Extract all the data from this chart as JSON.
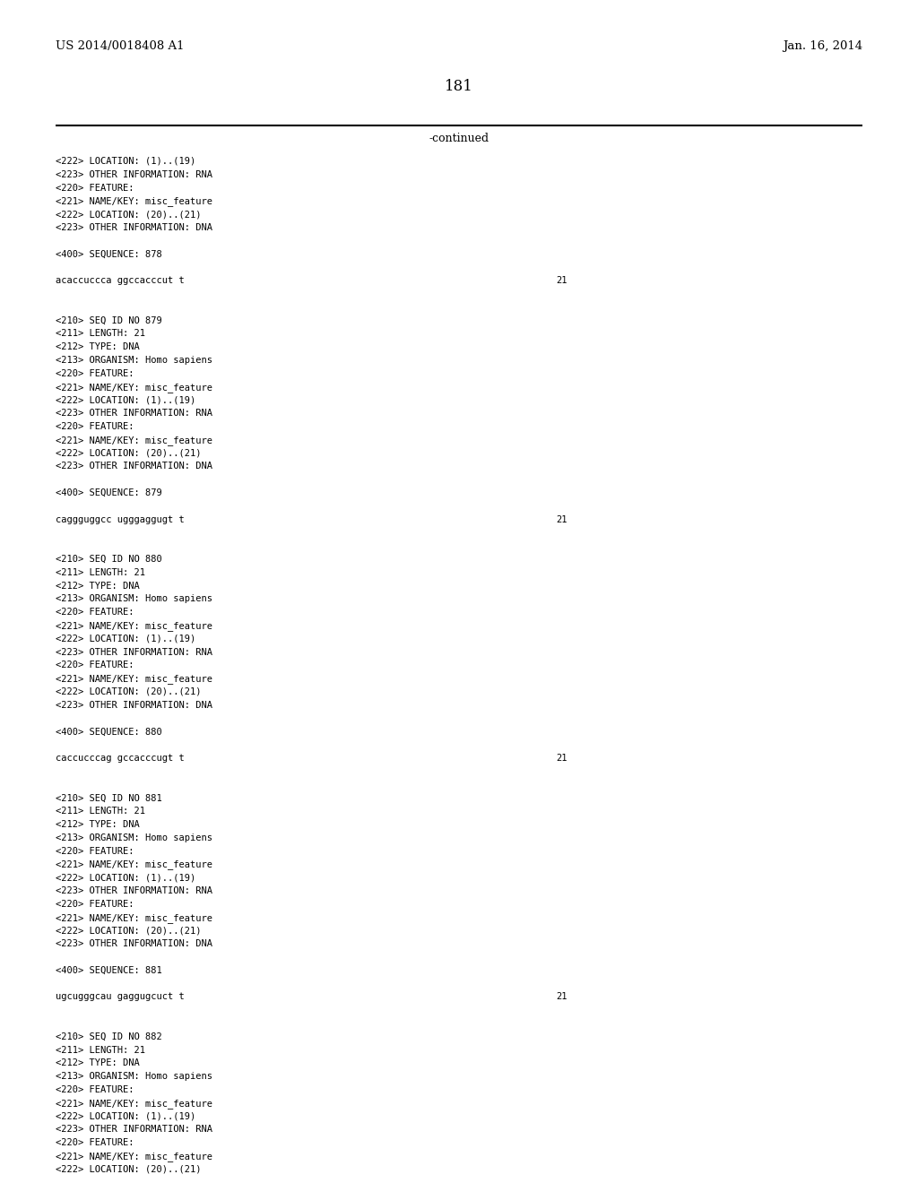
{
  "header_left": "US 2014/0018408 A1",
  "header_right": "Jan. 16, 2014",
  "page_number": "181",
  "continued_label": "-continued",
  "background_color": "#ffffff",
  "text_color": "#000000",
  "lines": [
    {
      "text": "<222> LOCATION: (1)..(19)",
      "seq_num": null
    },
    {
      "text": "<223> OTHER INFORMATION: RNA",
      "seq_num": null
    },
    {
      "text": "<220> FEATURE:",
      "seq_num": null
    },
    {
      "text": "<221> NAME/KEY: misc_feature",
      "seq_num": null
    },
    {
      "text": "<222> LOCATION: (20)..(21)",
      "seq_num": null
    },
    {
      "text": "<223> OTHER INFORMATION: DNA",
      "seq_num": null
    },
    {
      "text": "",
      "seq_num": null
    },
    {
      "text": "<400> SEQUENCE: 878",
      "seq_num": null
    },
    {
      "text": "",
      "seq_num": null
    },
    {
      "text": "acaccuccca ggccacccut t",
      "seq_num": "21"
    },
    {
      "text": "",
      "seq_num": null
    },
    {
      "text": "",
      "seq_num": null
    },
    {
      "text": "<210> SEQ ID NO 879",
      "seq_num": null
    },
    {
      "text": "<211> LENGTH: 21",
      "seq_num": null
    },
    {
      "text": "<212> TYPE: DNA",
      "seq_num": null
    },
    {
      "text": "<213> ORGANISM: Homo sapiens",
      "seq_num": null
    },
    {
      "text": "<220> FEATURE:",
      "seq_num": null
    },
    {
      "text": "<221> NAME/KEY: misc_feature",
      "seq_num": null
    },
    {
      "text": "<222> LOCATION: (1)..(19)",
      "seq_num": null
    },
    {
      "text": "<223> OTHER INFORMATION: RNA",
      "seq_num": null
    },
    {
      "text": "<220> FEATURE:",
      "seq_num": null
    },
    {
      "text": "<221> NAME/KEY: misc_feature",
      "seq_num": null
    },
    {
      "text": "<222> LOCATION: (20)..(21)",
      "seq_num": null
    },
    {
      "text": "<223> OTHER INFORMATION: DNA",
      "seq_num": null
    },
    {
      "text": "",
      "seq_num": null
    },
    {
      "text": "<400> SEQUENCE: 879",
      "seq_num": null
    },
    {
      "text": "",
      "seq_num": null
    },
    {
      "text": "caggguggcc ugggaggugt t",
      "seq_num": "21"
    },
    {
      "text": "",
      "seq_num": null
    },
    {
      "text": "",
      "seq_num": null
    },
    {
      "text": "<210> SEQ ID NO 880",
      "seq_num": null
    },
    {
      "text": "<211> LENGTH: 21",
      "seq_num": null
    },
    {
      "text": "<212> TYPE: DNA",
      "seq_num": null
    },
    {
      "text": "<213> ORGANISM: Homo sapiens",
      "seq_num": null
    },
    {
      "text": "<220> FEATURE:",
      "seq_num": null
    },
    {
      "text": "<221> NAME/KEY: misc_feature",
      "seq_num": null
    },
    {
      "text": "<222> LOCATION: (1)..(19)",
      "seq_num": null
    },
    {
      "text": "<223> OTHER INFORMATION: RNA",
      "seq_num": null
    },
    {
      "text": "<220> FEATURE:",
      "seq_num": null
    },
    {
      "text": "<221> NAME/KEY: misc_feature",
      "seq_num": null
    },
    {
      "text": "<222> LOCATION: (20)..(21)",
      "seq_num": null
    },
    {
      "text": "<223> OTHER INFORMATION: DNA",
      "seq_num": null
    },
    {
      "text": "",
      "seq_num": null
    },
    {
      "text": "<400> SEQUENCE: 880",
      "seq_num": null
    },
    {
      "text": "",
      "seq_num": null
    },
    {
      "text": "caccucccag gccacccugt t",
      "seq_num": "21"
    },
    {
      "text": "",
      "seq_num": null
    },
    {
      "text": "",
      "seq_num": null
    },
    {
      "text": "<210> SEQ ID NO 881",
      "seq_num": null
    },
    {
      "text": "<211> LENGTH: 21",
      "seq_num": null
    },
    {
      "text": "<212> TYPE: DNA",
      "seq_num": null
    },
    {
      "text": "<213> ORGANISM: Homo sapiens",
      "seq_num": null
    },
    {
      "text": "<220> FEATURE:",
      "seq_num": null
    },
    {
      "text": "<221> NAME/KEY: misc_feature",
      "seq_num": null
    },
    {
      "text": "<222> LOCATION: (1)..(19)",
      "seq_num": null
    },
    {
      "text": "<223> OTHER INFORMATION: RNA",
      "seq_num": null
    },
    {
      "text": "<220> FEATURE:",
      "seq_num": null
    },
    {
      "text": "<221> NAME/KEY: misc_feature",
      "seq_num": null
    },
    {
      "text": "<222> LOCATION: (20)..(21)",
      "seq_num": null
    },
    {
      "text": "<223> OTHER INFORMATION: DNA",
      "seq_num": null
    },
    {
      "text": "",
      "seq_num": null
    },
    {
      "text": "<400> SEQUENCE: 881",
      "seq_num": null
    },
    {
      "text": "",
      "seq_num": null
    },
    {
      "text": "ugcugggcau gaggugcuct t",
      "seq_num": "21"
    },
    {
      "text": "",
      "seq_num": null
    },
    {
      "text": "",
      "seq_num": null
    },
    {
      "text": "<210> SEQ ID NO 882",
      "seq_num": null
    },
    {
      "text": "<211> LENGTH: 21",
      "seq_num": null
    },
    {
      "text": "<212> TYPE: DNA",
      "seq_num": null
    },
    {
      "text": "<213> ORGANISM: Homo sapiens",
      "seq_num": null
    },
    {
      "text": "<220> FEATURE:",
      "seq_num": null
    },
    {
      "text": "<221> NAME/KEY: misc_feature",
      "seq_num": null
    },
    {
      "text": "<222> LOCATION: (1)..(19)",
      "seq_num": null
    },
    {
      "text": "<223> OTHER INFORMATION: RNA",
      "seq_num": null
    },
    {
      "text": "<220> FEATURE:",
      "seq_num": null
    },
    {
      "text": "<221> NAME/KEY: misc_feature",
      "seq_num": null
    },
    {
      "text": "<222> LOCATION: (20)..(21)",
      "seq_num": null
    }
  ]
}
